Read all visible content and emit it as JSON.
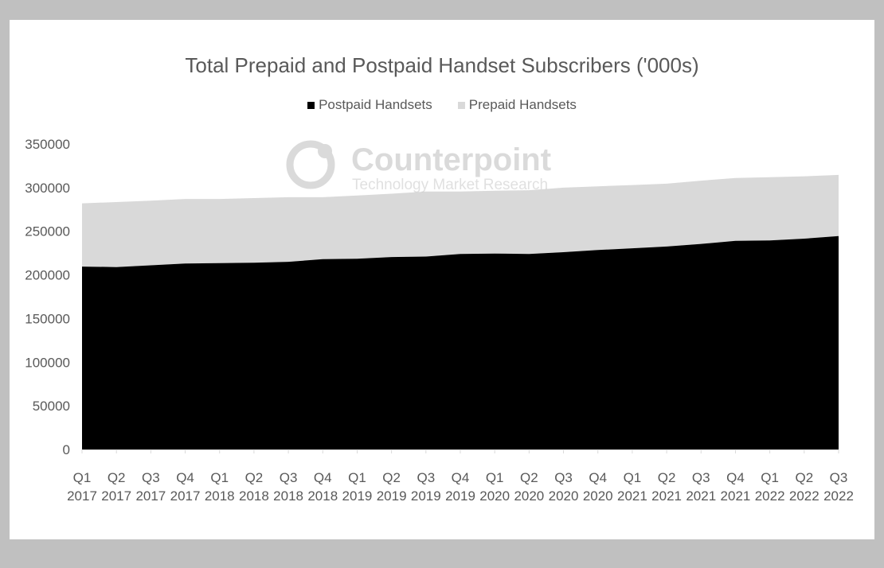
{
  "chart_data": {
    "type": "area",
    "stacked": true,
    "title": "Total Prepaid and Postpaid Handset Subscribers ('000s)",
    "xlabel": "",
    "ylabel": "",
    "ylim": [
      0,
      350000
    ],
    "yticks": [
      0,
      50000,
      100000,
      150000,
      200000,
      250000,
      300000,
      350000
    ],
    "grid": false,
    "legend_position": "top",
    "categories": [
      [
        "Q1",
        "2017"
      ],
      [
        "Q2",
        "2017"
      ],
      [
        "Q3",
        "2017"
      ],
      [
        "Q4",
        "2017"
      ],
      [
        "Q1",
        "2018"
      ],
      [
        "Q2",
        "2018"
      ],
      [
        "Q3",
        "2018"
      ],
      [
        "Q4",
        "2018"
      ],
      [
        "Q1",
        "2019"
      ],
      [
        "Q2",
        "2019"
      ],
      [
        "Q3",
        "2019"
      ],
      [
        "Q4",
        "2019"
      ],
      [
        "Q1",
        "2020"
      ],
      [
        "Q2",
        "2020"
      ],
      [
        "Q3",
        "2020"
      ],
      [
        "Q4",
        "2020"
      ],
      [
        "Q1",
        "2021"
      ],
      [
        "Q2",
        "2021"
      ],
      [
        "Q3",
        "2021"
      ],
      [
        "Q4",
        "2021"
      ],
      [
        "Q1",
        "2022"
      ],
      [
        "Q2",
        "2022"
      ],
      [
        "Q3",
        "2022"
      ]
    ],
    "series": [
      {
        "name": "Postpaid Handsets",
        "color": "#000000",
        "values": [
          209500,
          209000,
          211000,
          213000,
          213500,
          214000,
          215000,
          218000,
          218500,
          220500,
          221000,
          224000,
          224500,
          224000,
          226000,
          228500,
          230500,
          232500,
          235500,
          239000,
          239500,
          241500,
          244500
        ]
      },
      {
        "name": "Prepaid Handsets",
        "color": "#d9d9d9",
        "values": [
          72500,
          74500,
          74000,
          74000,
          73500,
          74000,
          74000,
          71000,
          72500,
          72500,
          74500,
          71500,
          72000,
          73000,
          74000,
          73000,
          72500,
          72000,
          72500,
          72000,
          72500,
          71500,
          70000
        ]
      }
    ]
  },
  "watermark": {
    "brand": "Counterpoint",
    "tagline": "Technology Market Research"
  }
}
